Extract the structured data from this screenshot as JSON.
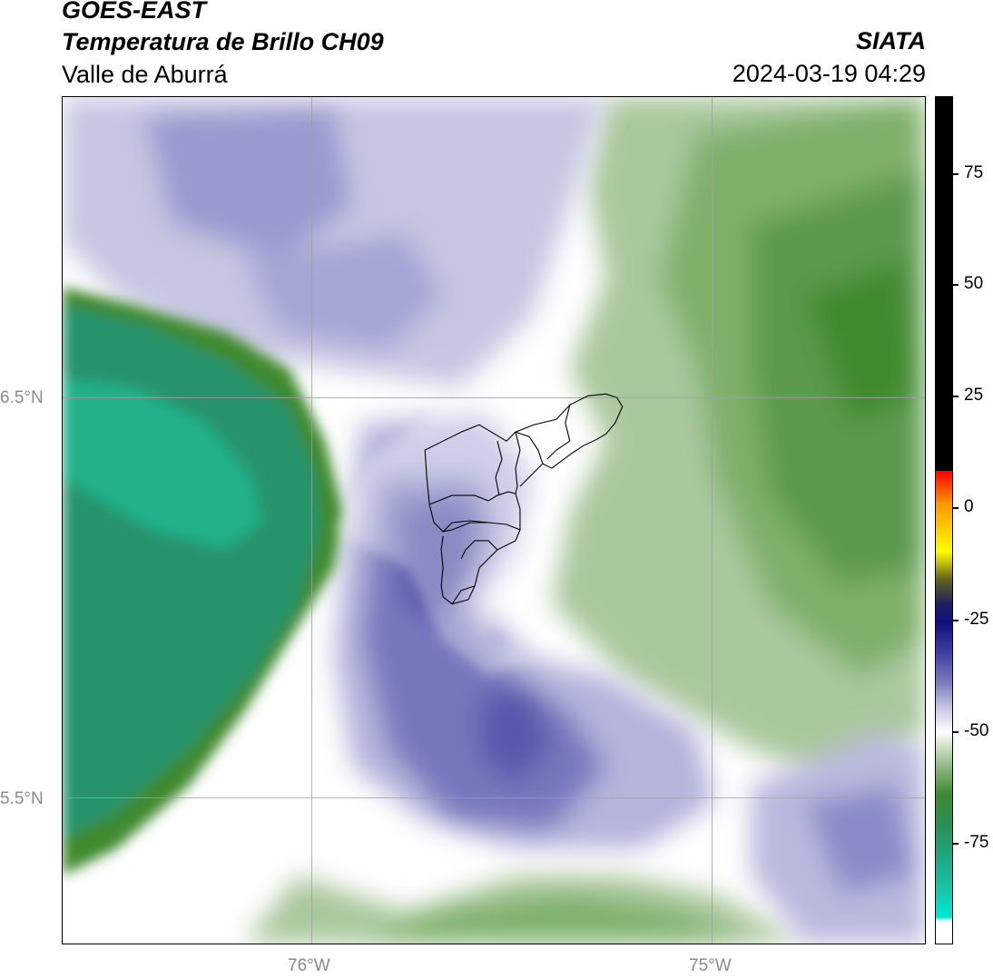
{
  "header": {
    "satellite": "GOES-EAST",
    "product": "Temperatura de Brillo CH09",
    "region": "Valle de Aburrá",
    "organization": "SIATA",
    "timestamp": "2024-03-19 04:29"
  },
  "map": {
    "lat_labels": [
      "6.5°N",
      "5.5°N"
    ],
    "lon_labels": [
      "76°W",
      "75°W"
    ],
    "variable": "brightness temperature (°C)",
    "colormap": [
      {
        "value": -95,
        "color": "#ffffff"
      },
      {
        "value": -88,
        "color": "#00e5cc"
      },
      {
        "value": -75,
        "color": "#1f8f5f"
      },
      {
        "value": -65,
        "color": "#3f8f2f"
      },
      {
        "value": -55,
        "color": "#a8c89a"
      },
      {
        "value": -50,
        "color": "#ffffff"
      },
      {
        "value": -42,
        "color": "#b8b8dc"
      },
      {
        "value": -33,
        "color": "#5050a8"
      },
      {
        "value": -25,
        "color": "#101080"
      },
      {
        "value": -20,
        "color": "#404020"
      },
      {
        "value": -12,
        "color": "#ffff00"
      },
      {
        "value": 0,
        "color": "#ff8000"
      },
      {
        "value": 8,
        "color": "#ff0000"
      },
      {
        "value": 9,
        "color": "#000000"
      }
    ]
  },
  "colorbar": {
    "ticks": [
      "75",
      "50",
      "25",
      "0",
      "-25",
      "-50",
      "-75"
    ]
  }
}
